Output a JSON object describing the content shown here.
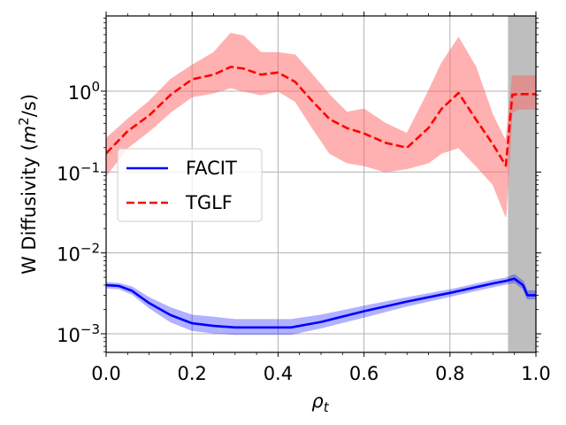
{
  "chart_data": {
    "type": "line",
    "title": "",
    "xlabel_symbol": "ρ",
    "xlabel_subscript": "t",
    "ylabel_main": "W Diffusivity (",
    "ylabel_var": "m",
    "ylabel_exp": "2",
    "ylabel_tail": "/s)",
    "xlim": [
      0.0,
      1.0
    ],
    "ylim_log10": [
      -3.23,
      0.93
    ],
    "grid": true,
    "legend_position": "center-left",
    "x_ticks": [
      {
        "value": 0.0,
        "label": "0.0"
      },
      {
        "value": 0.2,
        "label": "0.2"
      },
      {
        "value": 0.4,
        "label": "0.4"
      },
      {
        "value": 0.6,
        "label": "0.6"
      },
      {
        "value": 0.8,
        "label": "0.8"
      },
      {
        "value": 1.0,
        "label": "1.0"
      }
    ],
    "y_ticks": [
      {
        "value": 0.001,
        "base": "10",
        "exp": "−3"
      },
      {
        "value": 0.01,
        "base": "10",
        "exp": "−2"
      },
      {
        "value": 0.1,
        "base": "10",
        "exp": "−1"
      },
      {
        "value": 1,
        "base": "10",
        "exp": "0"
      }
    ],
    "shaded_region": {
      "x_start": 0.935,
      "x_end": 1.0,
      "color": "#bebebe"
    },
    "series": [
      {
        "name": "FACIT",
        "color": "#0000ff",
        "band_color": "#0000ff",
        "line_style": "solid",
        "x": [
          0.0,
          0.03,
          0.06,
          0.1,
          0.15,
          0.2,
          0.25,
          0.3,
          0.35,
          0.43,
          0.5,
          0.6,
          0.7,
          0.8,
          0.9,
          0.93,
          0.95,
          0.97,
          0.98,
          1.0
        ],
        "values": [
          0.004,
          0.0039,
          0.0034,
          0.0024,
          0.0017,
          0.00135,
          0.00125,
          0.0012,
          0.0012,
          0.0012,
          0.0014,
          0.0019,
          0.0025,
          0.0032,
          0.0042,
          0.0045,
          0.0048,
          0.004,
          0.003,
          0.003
        ],
        "lower": [
          0.0037,
          0.0036,
          0.0031,
          0.0021,
          0.0014,
          0.0011,
          0.00102,
          0.00098,
          0.00098,
          0.00098,
          0.00118,
          0.0016,
          0.0022,
          0.0029,
          0.0038,
          0.0041,
          0.0043,
          0.0036,
          0.0027,
          0.0027
        ],
        "upper": [
          0.0043,
          0.0042,
          0.0038,
          0.0028,
          0.0021,
          0.0017,
          0.0016,
          0.0015,
          0.0015,
          0.0015,
          0.0017,
          0.0022,
          0.0028,
          0.0035,
          0.0046,
          0.0049,
          0.0054,
          0.0045,
          0.0034,
          0.0034
        ]
      },
      {
        "name": "TGLF",
        "color": "#ff0000",
        "band_color": "#ff6666",
        "line_style": "dashed",
        "x": [
          0.0,
          0.05,
          0.1,
          0.15,
          0.2,
          0.25,
          0.29,
          0.32,
          0.36,
          0.4,
          0.44,
          0.48,
          0.52,
          0.56,
          0.6,
          0.65,
          0.7,
          0.75,
          0.78,
          0.82,
          0.86,
          0.9,
          0.93,
          0.945,
          0.96,
          1.0
        ],
        "values": [
          0.17,
          0.32,
          0.5,
          0.9,
          1.4,
          1.6,
          2.0,
          1.9,
          1.6,
          1.7,
          1.3,
          0.75,
          0.45,
          0.35,
          0.3,
          0.23,
          0.2,
          0.35,
          0.6,
          0.95,
          0.45,
          0.22,
          0.12,
          0.9,
          0.92,
          0.92
        ],
        "lower": [
          0.09,
          0.2,
          0.32,
          0.55,
          0.85,
          0.95,
          1.1,
          1.0,
          0.9,
          1.0,
          0.75,
          0.35,
          0.17,
          0.13,
          0.12,
          0.1,
          0.11,
          0.13,
          0.17,
          0.2,
          0.12,
          0.07,
          0.028,
          0.55,
          0.6,
          0.6
        ],
        "upper": [
          0.26,
          0.45,
          0.75,
          1.4,
          2.1,
          3.0,
          5.2,
          4.8,
          3.0,
          3.0,
          2.8,
          1.6,
          0.9,
          0.55,
          0.6,
          0.4,
          0.3,
          1.0,
          2.2,
          4.6,
          2.0,
          0.5,
          0.24,
          1.55,
          1.55,
          1.55
        ]
      }
    ]
  }
}
